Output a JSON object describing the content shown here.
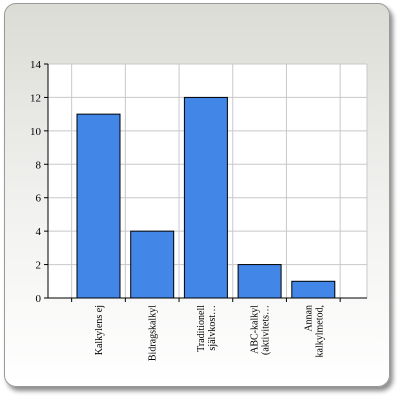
{
  "chart_data": {
    "type": "bar",
    "categories": [
      [
        "Kalkylens ej"
      ],
      [
        "Bidragskalkyl"
      ],
      [
        "Traditionell",
        "självkost…"
      ],
      [
        "ABC-kalkyl",
        "(aktivitets…"
      ],
      [
        "Annan",
        "kalkylmetod,"
      ]
    ],
    "values": [
      11,
      4,
      12,
      2,
      1
    ],
    "title": "",
    "xlabel": "",
    "ylabel": "",
    "ylim": [
      0,
      14
    ],
    "yticks": [
      0,
      2,
      4,
      6,
      8,
      10,
      12,
      14
    ],
    "grid": true,
    "legend": "none",
    "bar_color": "#4286e8",
    "bar_edge_color": "#000000",
    "grid_color": "#c8c8c8"
  }
}
